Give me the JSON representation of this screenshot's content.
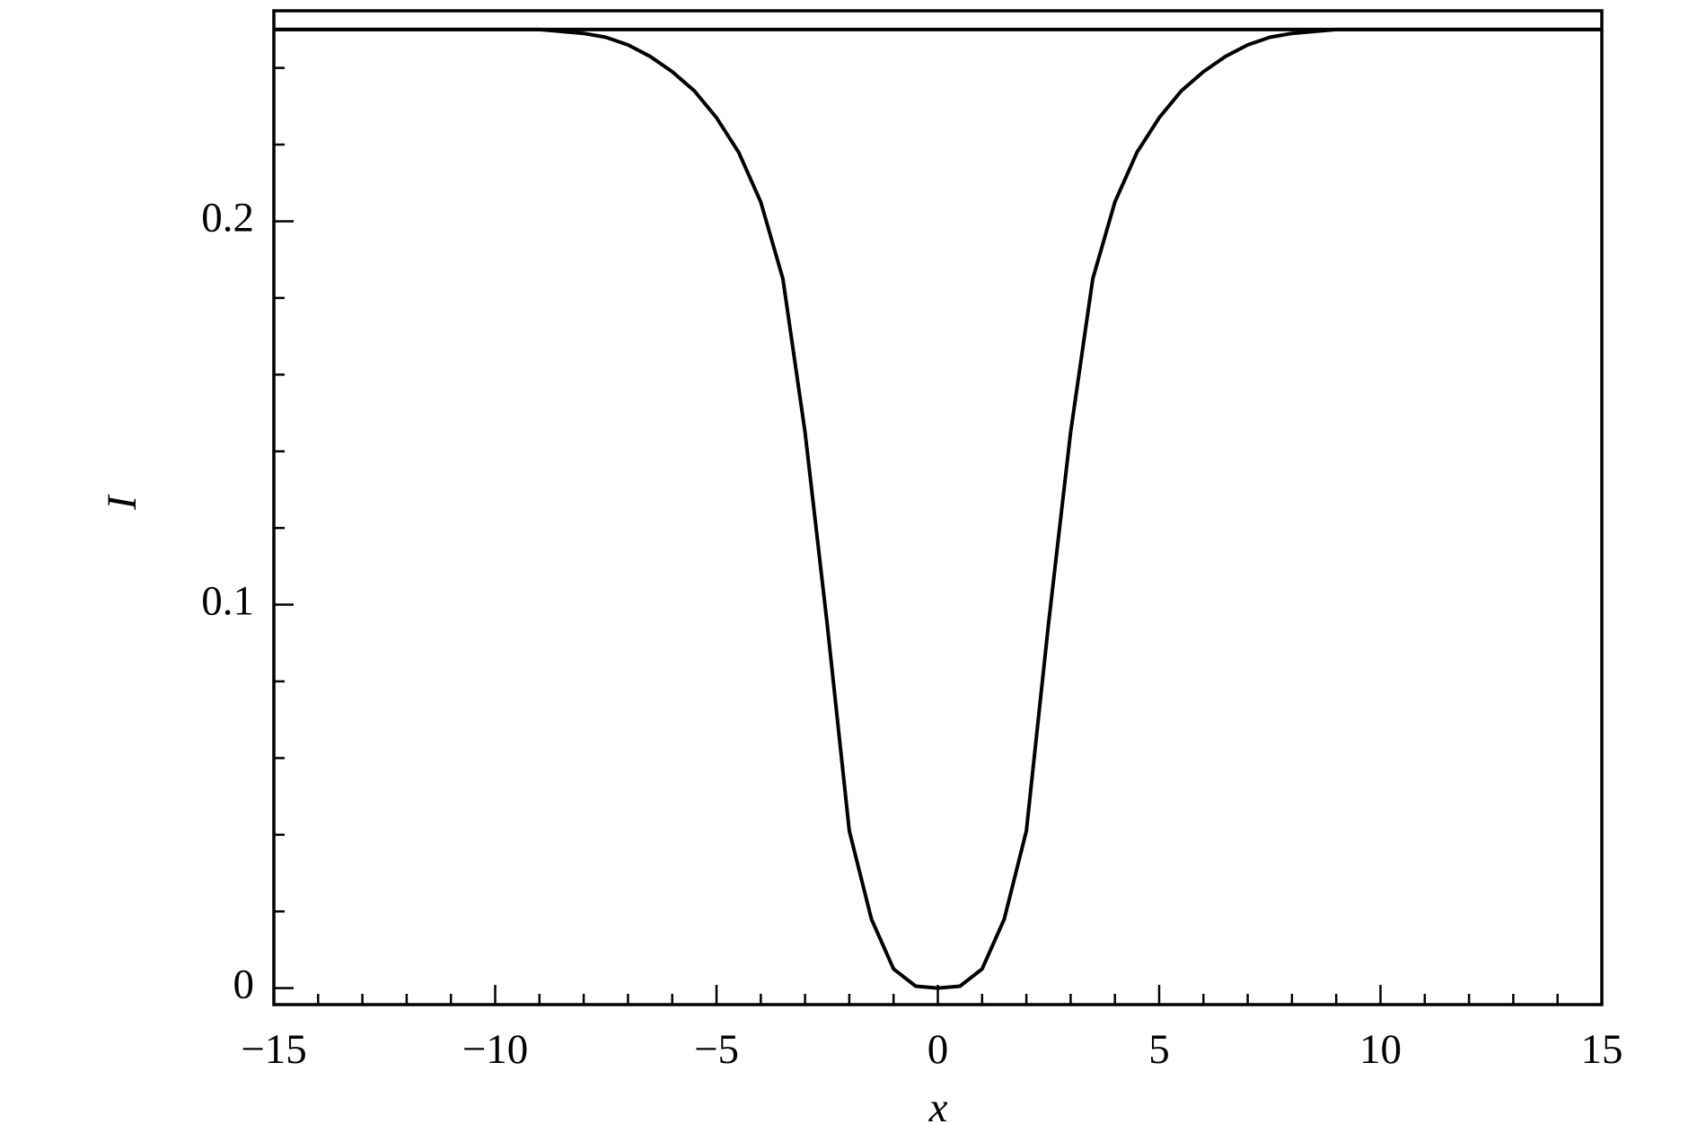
{
  "chart_data": {
    "type": "line",
    "xlabel": "x",
    "ylabel": "I",
    "x": [
      -15,
      -14.5,
      -14,
      -13.5,
      -13,
      -12.5,
      -12,
      -11.5,
      -11,
      -10.5,
      -10,
      -9.5,
      -9,
      -8.5,
      -8,
      -7.5,
      -7,
      -6.5,
      -6,
      -5.5,
      -5,
      -4.5,
      -4,
      -3.5,
      -3,
      -2.5,
      -2,
      -1.5,
      -1,
      -0.5,
      0,
      0.5,
      1,
      1.5,
      2,
      2.5,
      3,
      3.5,
      4,
      4.5,
      5,
      5.5,
      6,
      6.5,
      7,
      7.5,
      8,
      8.5,
      9,
      9.5,
      10,
      10.5,
      11,
      11.5,
      12,
      12.5,
      13,
      13.5,
      14,
      14.5,
      15
    ],
    "series": [
      {
        "color": "#000000",
        "values": [
          0.25,
          0.25,
          0.25,
          0.25,
          0.25,
          0.25,
          0.25,
          0.25,
          0.25,
          0.25,
          0.25,
          0.25,
          0.25,
          0.2495,
          0.249,
          0.248,
          0.246,
          0.243,
          0.239,
          0.234,
          0.227,
          0.218,
          0.205,
          0.185,
          0.145,
          0.095,
          0.041,
          0.018,
          0.005,
          0.0005,
          0,
          0.0005,
          0.005,
          0.018,
          0.041,
          0.095,
          0.145,
          0.185,
          0.205,
          0.218,
          0.227,
          0.234,
          0.239,
          0.243,
          0.246,
          0.248,
          0.249,
          0.2495,
          0.25,
          0.25,
          0.25,
          0.25,
          0.25,
          0.25,
          0.25,
          0.25,
          0.25,
          0.25,
          0.25,
          0.25,
          0.25
        ]
      },
      {
        "color": "#000000",
        "values": [
          0.25,
          0.25,
          0.25,
          0.25,
          0.25,
          0.25,
          0.25,
          0.25,
          0.25,
          0.25,
          0.25,
          0.25,
          0.25,
          0.25,
          0.25,
          0.25,
          0.25,
          0.25,
          0.25,
          0.25,
          0.25,
          0.25,
          0.25,
          0.25,
          0.25,
          0.25,
          0.25,
          0.25,
          0.25,
          0.25,
          0.25,
          0.25,
          0.25,
          0.25,
          0.25,
          0.25,
          0.25,
          0.25,
          0.25,
          0.25,
          0.25,
          0.25,
          0.25,
          0.25,
          0.25,
          0.25,
          0.25,
          0.25,
          0.25,
          0.25,
          0.25,
          0.25,
          0.25,
          0.25,
          0.25,
          0.25,
          0.25,
          0.25,
          0.25,
          0.25,
          0.25
        ]
      }
    ],
    "xlim": [
      -15,
      15
    ],
    "ylim": [
      -0.0043,
      0.2549
    ],
    "xticks": [
      {
        "value": -15,
        "label": "−15"
      },
      {
        "value": -10,
        "label": "−10"
      },
      {
        "value": -5,
        "label": "−5"
      },
      0,
      5,
      10,
      15
    ],
    "xminorticks": [
      -14,
      -13,
      -12,
      -11,
      -9,
      -8,
      -7,
      -6,
      -4,
      -3,
      -2,
      -1,
      1,
      2,
      3,
      4,
      6,
      7,
      8,
      9,
      11,
      12,
      13,
      14
    ],
    "yticks": [
      0,
      0.1,
      0.2
    ],
    "yminorticks": [
      0.02,
      0.04,
      0.06,
      0.08,
      0.12,
      0.14,
      0.16,
      0.18,
      0.22,
      0.24
    ],
    "grid": false
  }
}
